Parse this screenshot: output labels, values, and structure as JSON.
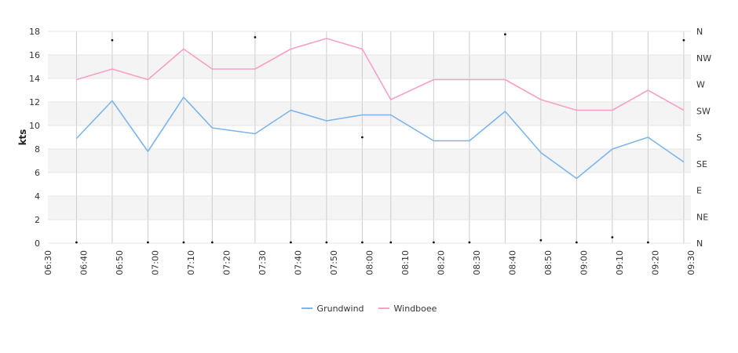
{
  "chart_data": {
    "type": "line",
    "ylabel": "kts",
    "ylim": [
      0,
      18
    ],
    "y_ticks": [
      "0",
      "2",
      "4",
      "6",
      "8",
      "10",
      "12",
      "14",
      "16",
      "18"
    ],
    "x_tick_labels": [
      "06:30",
      "06:40",
      "06:50",
      "07:00",
      "07:10",
      "07:20",
      "07:30",
      "07:40",
      "07:50",
      "08:00",
      "08:10",
      "08:20",
      "08:30",
      "08:40",
      "08:50",
      "09:00",
      "09:10",
      "09:20",
      "09:30"
    ],
    "x_range_minutes": [
      0,
      180
    ],
    "x_minutes": [
      8,
      18,
      28,
      38,
      46,
      58,
      68,
      78,
      88,
      96,
      108,
      118,
      128,
      138,
      148,
      158,
      168,
      178
    ],
    "direction_axis_labels": [
      "N",
      "NE",
      "E",
      "SE",
      "S",
      "SW",
      "W",
      "NW",
      "N"
    ],
    "direction_degrees": [
      0,
      345,
      0,
      0,
      0,
      350,
      0,
      0,
      0,
      180,
      0,
      0,
      0,
      355,
      5,
      0,
      10,
      0,
      345
    ],
    "direction_x_minutes": [
      8,
      18,
      28,
      38,
      46,
      58,
      68,
      78,
      88,
      88,
      96,
      108,
      118,
      128,
      138,
      148,
      158,
      168,
      178
    ],
    "series": [
      {
        "name": "Grundwind",
        "color": "#7cb5ec",
        "values": [
          8.9,
          12.1,
          7.8,
          12.4,
          9.8,
          9.3,
          11.3,
          10.4,
          10.9,
          10.9,
          8.7,
          8.7,
          11.2,
          7.7,
          5.5,
          8.0,
          9.0,
          6.9
        ]
      },
      {
        "name": "Windboee",
        "color": "#f7a0c5",
        "values": [
          13.9,
          14.8,
          13.9,
          16.5,
          14.8,
          14.8,
          16.5,
          17.4,
          16.5,
          12.2,
          13.9,
          13.9,
          13.9,
          12.2,
          11.3,
          11.3,
          13.0,
          11.3
        ]
      }
    ],
    "grid": true,
    "legend_position": "bottom-center"
  }
}
